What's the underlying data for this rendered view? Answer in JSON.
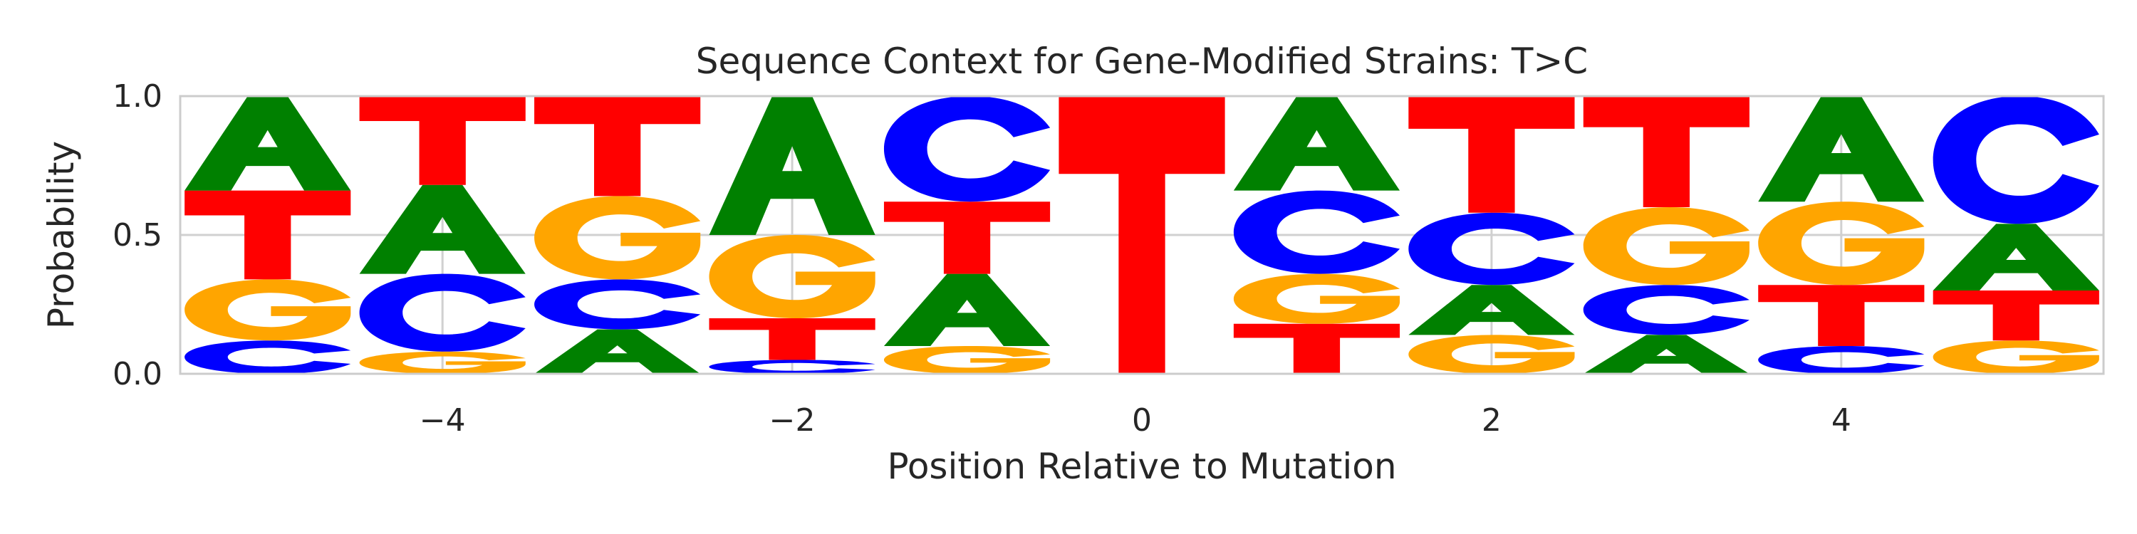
{
  "chart_data": {
    "type": "sequence_logo",
    "title": "Sequence Context for Gene-Modified Strains: T>C",
    "xlabel": "Position Relative to Mutation",
    "ylabel": "Probability",
    "xlim": [
      -5.5,
      5.5
    ],
    "ylim": [
      0,
      1.0
    ],
    "x_ticks": [
      -4,
      -2,
      0,
      2,
      4
    ],
    "x_tick_labels": [
      "−4",
      "−2",
      "0",
      "2",
      "4"
    ],
    "y_ticks": [
      0.0,
      0.5,
      1.0
    ],
    "y_tick_labels": [
      "0.0",
      "0.5",
      "1.0"
    ],
    "grid": true,
    "colors": {
      "A": "#008000",
      "C": "#0000ff",
      "G": "#ffa500",
      "T": "#ff0000"
    },
    "positions": [
      {
        "x": -5,
        "stack": [
          [
            "C",
            0.12
          ],
          [
            "G",
            0.22
          ],
          [
            "T",
            0.32
          ],
          [
            "A",
            0.34
          ]
        ]
      },
      {
        "x": -4,
        "stack": [
          [
            "G",
            0.08
          ],
          [
            "C",
            0.28
          ],
          [
            "A",
            0.32
          ],
          [
            "T",
            0.32
          ]
        ]
      },
      {
        "x": -3,
        "stack": [
          [
            "A",
            0.16
          ],
          [
            "C",
            0.18
          ],
          [
            "G",
            0.3
          ],
          [
            "T",
            0.36
          ]
        ]
      },
      {
        "x": -2,
        "stack": [
          [
            "C",
            0.05
          ],
          [
            "T",
            0.15
          ],
          [
            "G",
            0.3
          ],
          [
            "A",
            0.5
          ]
        ]
      },
      {
        "x": -1,
        "stack": [
          [
            "G",
            0.1
          ],
          [
            "A",
            0.26
          ],
          [
            "T",
            0.26
          ],
          [
            "C",
            0.38
          ]
        ]
      },
      {
        "x": 0,
        "stack": [
          [
            "T",
            1.0
          ]
        ]
      },
      {
        "x": 1,
        "stack": [
          [
            "T",
            0.18
          ],
          [
            "G",
            0.18
          ],
          [
            "C",
            0.3
          ],
          [
            "A",
            0.34
          ]
        ]
      },
      {
        "x": 2,
        "stack": [
          [
            "G",
            0.14
          ],
          [
            "A",
            0.18
          ],
          [
            "C",
            0.26
          ],
          [
            "T",
            0.42
          ]
        ]
      },
      {
        "x": 3,
        "stack": [
          [
            "A",
            0.14
          ],
          [
            "C",
            0.18
          ],
          [
            "G",
            0.28
          ],
          [
            "T",
            0.4
          ]
        ]
      },
      {
        "x": 4,
        "stack": [
          [
            "C",
            0.1
          ],
          [
            "T",
            0.22
          ],
          [
            "G",
            0.3
          ],
          [
            "A",
            0.38
          ]
        ]
      },
      {
        "x": 5,
        "stack": [
          [
            "G",
            0.12
          ],
          [
            "T",
            0.18
          ],
          [
            "A",
            0.24
          ],
          [
            "C",
            0.46
          ]
        ]
      }
    ]
  }
}
